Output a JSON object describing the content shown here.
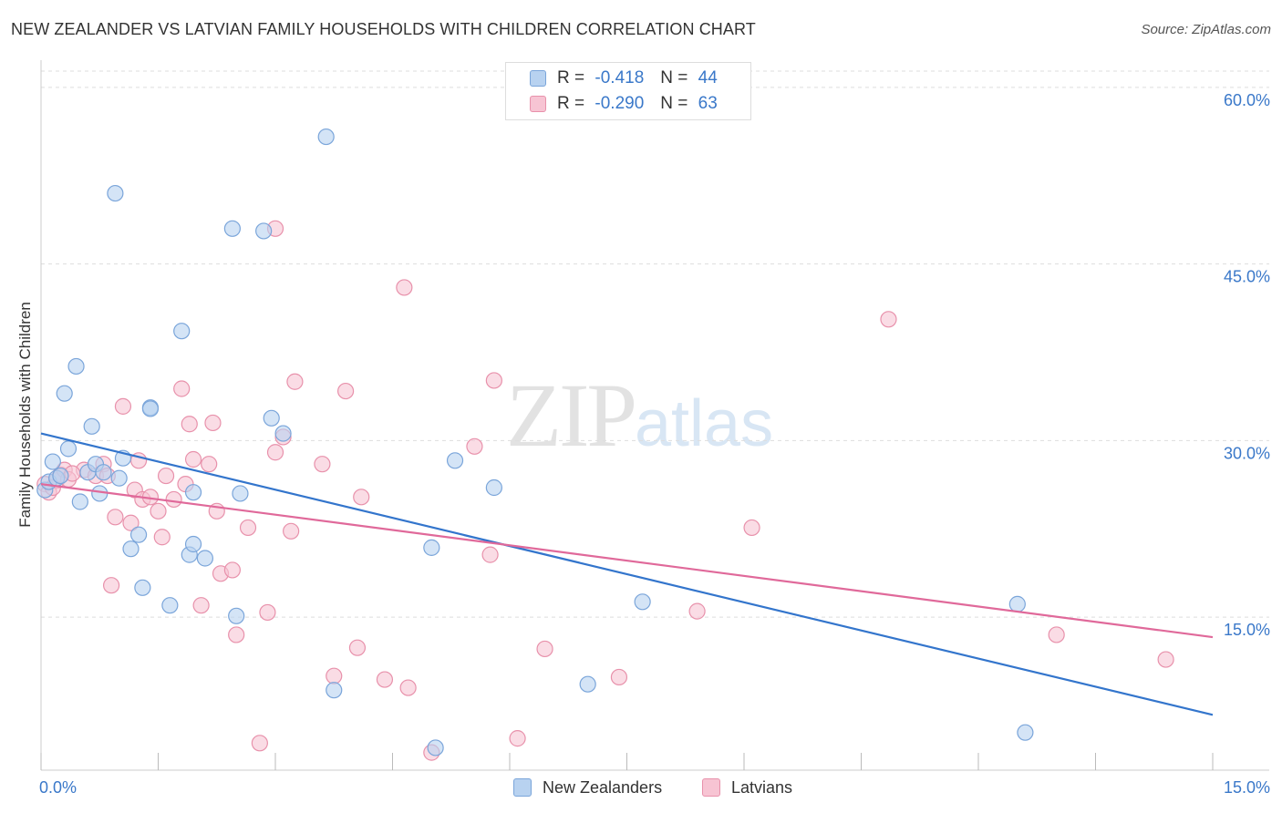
{
  "header": {
    "title": "NEW ZEALANDER VS LATVIAN FAMILY HOUSEHOLDS WITH CHILDREN CORRELATION CHART",
    "source": "Source: ZipAtlas.com"
  },
  "watermark": {
    "zip": "ZIP",
    "atlas": "atlas"
  },
  "stats": {
    "nz": {
      "r_label": "R =",
      "r_value": "-0.418",
      "n_label": "N =",
      "n_value": "44"
    },
    "lv": {
      "r_label": "R =",
      "r_value": "-0.290",
      "n_label": "N =",
      "n_value": "63"
    }
  },
  "legend": {
    "nz_label": "New Zealanders",
    "lv_label": "Latvians"
  },
  "colors": {
    "nz_fill": "#b8d2f0",
    "nz_stroke": "#7aa5da",
    "nz_line": "#3375cc",
    "lv_fill": "#f7c4d3",
    "lv_stroke": "#e891ab",
    "lv_line": "#e0699a",
    "tick_label": "#3a78c9",
    "grid": "#dddddd"
  },
  "chart_data": {
    "type": "scatter",
    "title": "NEW ZEALANDER VS LATVIAN FAMILY HOUSEHOLDS WITH CHILDREN CORRELATION CHART",
    "xlabel": "",
    "ylabel": "Family Households with Children",
    "xlim": [
      0,
      15
    ],
    "ylim": [
      2,
      62
    ],
    "x_tick_labels": [
      "0.0%",
      "15.0%"
    ],
    "y_ticks": [
      15,
      30,
      45,
      60
    ],
    "y_tick_labels": [
      "15.0%",
      "30.0%",
      "45.0%",
      "60.0%"
    ],
    "grid": true,
    "legend_position": "bottom-center",
    "series": [
      {
        "name": "New Zealanders",
        "points": [
          [
            0.05,
            25.8
          ],
          [
            0.1,
            26.5
          ],
          [
            0.15,
            28.2
          ],
          [
            0.2,
            26.8
          ],
          [
            0.25,
            27.0
          ],
          [
            0.3,
            34.0
          ],
          [
            0.35,
            29.3
          ],
          [
            0.45,
            36.3
          ],
          [
            0.5,
            24.8
          ],
          [
            0.6,
            27.3
          ],
          [
            0.65,
            31.2
          ],
          [
            0.7,
            28.0
          ],
          [
            0.75,
            25.5
          ],
          [
            0.8,
            27.3
          ],
          [
            0.95,
            51.0
          ],
          [
            1.0,
            26.8
          ],
          [
            1.05,
            28.5
          ],
          [
            1.15,
            20.8
          ],
          [
            1.25,
            22.0
          ],
          [
            1.3,
            17.5
          ],
          [
            1.4,
            32.8
          ],
          [
            1.4,
            32.7
          ],
          [
            1.65,
            16.0
          ],
          [
            1.8,
            39.3
          ],
          [
            1.9,
            20.3
          ],
          [
            1.95,
            25.6
          ],
          [
            1.95,
            21.2
          ],
          [
            2.1,
            20.0
          ],
          [
            2.45,
            48.0
          ],
          [
            2.5,
            15.1
          ],
          [
            2.55,
            25.5
          ],
          [
            2.85,
            47.8
          ],
          [
            2.95,
            31.9
          ],
          [
            3.1,
            30.6
          ],
          [
            3.65,
            55.8
          ],
          [
            3.75,
            8.8
          ],
          [
            5.0,
            20.9
          ],
          [
            5.05,
            3.9
          ],
          [
            5.3,
            28.3
          ],
          [
            5.8,
            26.0
          ],
          [
            7.7,
            16.3
          ],
          [
            7.0,
            9.3
          ],
          [
            12.5,
            16.1
          ],
          [
            12.6,
            5.2
          ]
        ]
      },
      {
        "name": "Latvians",
        "points": [
          [
            0.05,
            26.3
          ],
          [
            0.1,
            25.6
          ],
          [
            0.2,
            26.6
          ],
          [
            0.25,
            27.1
          ],
          [
            0.3,
            27.5
          ],
          [
            0.35,
            26.7
          ],
          [
            0.55,
            27.5
          ],
          [
            0.7,
            27.0
          ],
          [
            0.8,
            28.0
          ],
          [
            0.85,
            27.0
          ],
          [
            0.9,
            17.7
          ],
          [
            0.95,
            23.5
          ],
          [
            1.05,
            32.9
          ],
          [
            1.15,
            23.0
          ],
          [
            1.2,
            25.8
          ],
          [
            1.25,
            28.3
          ],
          [
            1.3,
            25.0
          ],
          [
            1.4,
            25.2
          ],
          [
            1.5,
            24.0
          ],
          [
            1.55,
            21.8
          ],
          [
            1.6,
            27.0
          ],
          [
            1.7,
            25.0
          ],
          [
            1.8,
            34.4
          ],
          [
            1.85,
            26.3
          ],
          [
            1.9,
            31.4
          ],
          [
            1.95,
            28.4
          ],
          [
            2.05,
            16.0
          ],
          [
            2.15,
            28.0
          ],
          [
            2.2,
            31.5
          ],
          [
            2.25,
            24.0
          ],
          [
            2.3,
            18.7
          ],
          [
            2.45,
            19.0
          ],
          [
            2.5,
            13.5
          ],
          [
            2.65,
            22.6
          ],
          [
            2.8,
            4.3
          ],
          [
            2.9,
            15.4
          ],
          [
            3.0,
            48.0
          ],
          [
            3.0,
            29.0
          ],
          [
            3.1,
            30.3
          ],
          [
            3.2,
            22.3
          ],
          [
            3.25,
            35.0
          ],
          [
            3.6,
            28.0
          ],
          [
            3.75,
            10.0
          ],
          [
            3.9,
            34.2
          ],
          [
            4.1,
            25.2
          ],
          [
            4.05,
            12.4
          ],
          [
            4.4,
            9.7
          ],
          [
            4.65,
            43.0
          ],
          [
            4.7,
            9.0
          ],
          [
            5.0,
            3.5
          ],
          [
            5.55,
            29.5
          ],
          [
            5.8,
            35.1
          ],
          [
            5.75,
            20.3
          ],
          [
            6.1,
            4.7
          ],
          [
            6.45,
            12.3
          ],
          [
            7.4,
            9.9
          ],
          [
            8.4,
            15.5
          ],
          [
            9.1,
            22.6
          ],
          [
            10.85,
            40.3
          ],
          [
            13.0,
            13.5
          ],
          [
            14.4,
            11.4
          ],
          [
            0.15,
            26.0
          ],
          [
            0.4,
            27.2
          ]
        ]
      }
    ],
    "trend_lines": [
      {
        "name": "New Zealanders",
        "x": [
          0.0,
          15.0
        ],
        "y": [
          30.6,
          6.7
        ]
      },
      {
        "name": "Latvians",
        "x": [
          0.0,
          15.0
        ],
        "y": [
          26.3,
          13.3
        ]
      }
    ]
  }
}
